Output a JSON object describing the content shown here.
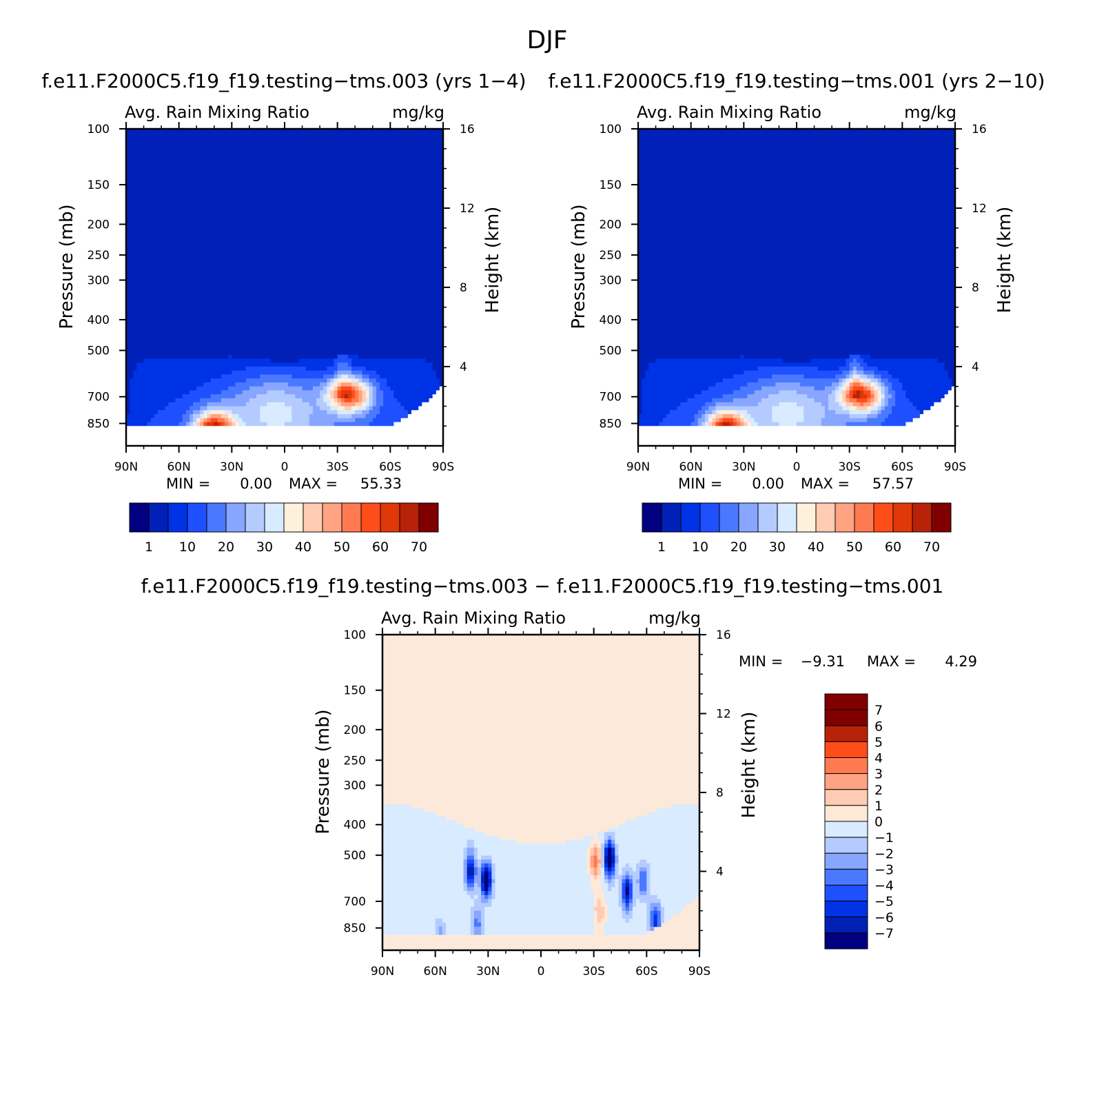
{
  "figure": {
    "title": "DJF"
  },
  "colors": {
    "abs_palette": [
      "#000080",
      "#0020b8",
      "#0033e6",
      "#1f50ff",
      "#4a78ff",
      "#88a6ff",
      "#b4cbff",
      "#d8ebff",
      "#fff0dc",
      "#ffccb3",
      "#ffa383",
      "#ff7a50",
      "#ff4d1a",
      "#e03808",
      "#b82208",
      "#800000"
    ],
    "diff_palette": [
      "#000080",
      "#0020b8",
      "#0033e6",
      "#1f50ff",
      "#4a78ff",
      "#88a6ff",
      "#b4cbff",
      "#d8ebff",
      "#ffe8d6",
      "#ffccb3",
      "#ffa383",
      "#ff7a50",
      "#ff4d1a",
      "#b82208",
      "#800000"
    ],
    "diff_background": "#fde9da"
  },
  "chart_data": [
    {
      "type": "contour",
      "title": "f.e11.F2000C5.f19_f19.testing−tms.003 (yrs 1−4)",
      "left_label": "Avg. Rain Mixing Ratio",
      "right_label": "mg/kg",
      "ylabel": "Pressure (mb)",
      "y2label": "Height (km)",
      "x_ticks": [
        "90N",
        "60N",
        "30N",
        "0",
        "30S",
        "60S",
        "90S"
      ],
      "y_ticks": [
        "100",
        "150",
        "200",
        "250",
        "300",
        "400",
        "500",
        "700",
        "850"
      ],
      "y_values": [
        100,
        150,
        200,
        250,
        300,
        400,
        500,
        700,
        850
      ],
      "y2_ticks": [
        "16",
        "12",
        "8",
        "4"
      ],
      "y2_values": [
        16,
        12,
        8,
        4
      ],
      "min_label": "MIN =",
      "min_value": "0.00",
      "max_label": "MAX =",
      "max_value": "55.33",
      "colorbar_labels": [
        "1",
        "10",
        "20",
        "30",
        "40",
        "50",
        "60",
        "70"
      ],
      "hotspots": [
        {
          "lat": 40,
          "p": 900,
          "value": 55,
          "sigma_lat": 8,
          "sigma_logp": 0.1
        },
        {
          "lat": -37,
          "p": 690,
          "value": 48,
          "sigma_lat": 9,
          "sigma_logp": 0.09
        },
        {
          "lat": 5,
          "p": 760,
          "value": 20,
          "sigma_lat": 20,
          "sigma_logp": 0.18
        }
      ]
    },
    {
      "type": "contour",
      "title": "f.e11.F2000C5.f19_f19.testing−tms.001 (yrs 2−10)",
      "left_label": "Avg. Rain Mixing Ratio",
      "right_label": "mg/kg",
      "ylabel": "Pressure (mb)",
      "y2label": "Height (km)",
      "x_ticks": [
        "90N",
        "60N",
        "30N",
        "0",
        "30S",
        "60S",
        "90S"
      ],
      "y_ticks": [
        "100",
        "150",
        "200",
        "250",
        "300",
        "400",
        "500",
        "700",
        "850"
      ],
      "y_values": [
        100,
        150,
        200,
        250,
        300,
        400,
        500,
        700,
        850
      ],
      "y2_ticks": [
        "16",
        "12",
        "8",
        "4"
      ],
      "y2_values": [
        16,
        12,
        8,
        4
      ],
      "min_label": "MIN =",
      "min_value": "0.00",
      "max_label": "MAX =",
      "max_value": "57.57",
      "colorbar_labels": [
        "1",
        "10",
        "20",
        "30",
        "40",
        "50",
        "60",
        "70"
      ],
      "hotspots": [
        {
          "lat": 40,
          "p": 900,
          "value": 57,
          "sigma_lat": 8,
          "sigma_logp": 0.1
        },
        {
          "lat": -37,
          "p": 690,
          "value": 50,
          "sigma_lat": 9,
          "sigma_logp": 0.09
        },
        {
          "lat": 5,
          "p": 760,
          "value": 20,
          "sigma_lat": 20,
          "sigma_logp": 0.18
        }
      ]
    },
    {
      "type": "contour",
      "title": "f.e11.F2000C5.f19_f19.testing−tms.003 − f.e11.F2000C5.f19_f19.testing−tms.001",
      "left_label": "Avg. Rain Mixing Ratio",
      "right_label": "mg/kg",
      "ylabel": "Pressure (mb)",
      "y2label": "Height (km)",
      "x_ticks": [
        "90N",
        "60N",
        "30N",
        "0",
        "30S",
        "60S",
        "90S"
      ],
      "y_ticks": [
        "100",
        "150",
        "200",
        "250",
        "300",
        "400",
        "500",
        "700",
        "850"
      ],
      "y_values": [
        100,
        150,
        200,
        250,
        300,
        400,
        500,
        700,
        850
      ],
      "y2_ticks": [
        "16",
        "12",
        "8",
        "4"
      ],
      "y2_values": [
        16,
        12,
        8,
        4
      ],
      "min_label": "MIN =",
      "min_value": "−9.31",
      "max_label": "MAX =",
      "max_value": "4.29",
      "colorbar_labels": [
        "7",
        "6",
        "5",
        "4",
        "3",
        "2",
        "1",
        "0",
        "−1",
        "−2",
        "−3",
        "−4",
        "−5",
        "−6",
        "−7"
      ],
      "anomalies": [
        {
          "lat": 31,
          "p": 600,
          "value": -8.5
        },
        {
          "lat": 40,
          "p": 560,
          "value": -6.5
        },
        {
          "lat": 36,
          "p": 820,
          "value": -3.0
        },
        {
          "lat": -39,
          "p": 510,
          "value": -9.3
        },
        {
          "lat": -49,
          "p": 650,
          "value": -7.0
        },
        {
          "lat": -58,
          "p": 600,
          "value": -3.5
        },
        {
          "lat": -65,
          "p": 800,
          "value": -5.0
        },
        {
          "lat": 57,
          "p": 960,
          "value": -4.0
        },
        {
          "lat": -31,
          "p": 520,
          "value": 4.29
        },
        {
          "lat": -33,
          "p": 760,
          "value": 2.5
        }
      ]
    }
  ]
}
